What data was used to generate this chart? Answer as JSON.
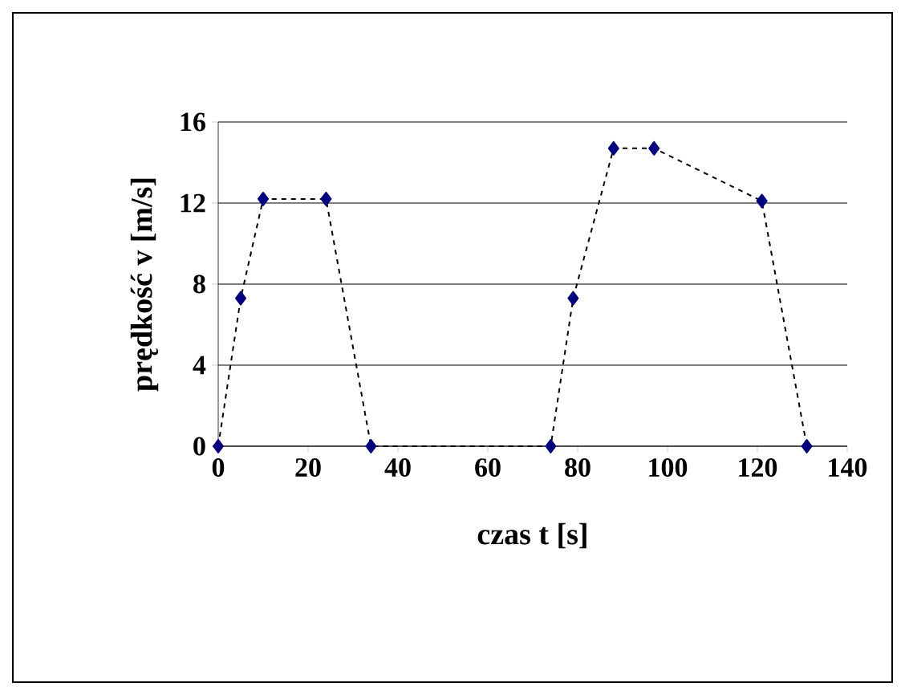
{
  "chart_data": {
    "type": "line",
    "xlabel": "czas t [s]",
    "ylabel": "prędkość v [m/s]",
    "x": [
      0,
      5,
      10,
      24,
      34,
      74,
      79,
      88,
      97,
      121,
      131
    ],
    "series": [
      {
        "color": "#000080",
        "values": [
          0,
          7.3,
          12.2,
          12.2,
          0,
          0,
          7.3,
          14.7,
          14.7,
          12.1,
          0
        ]
      }
    ],
    "xlim": [
      0,
      140
    ],
    "xticks": [
      0,
      20,
      40,
      60,
      80,
      100,
      120,
      140
    ],
    "ylim": [
      0,
      16
    ],
    "yticks": [
      0,
      4,
      8,
      12,
      16
    ],
    "grid": "y",
    "marker": "diamond",
    "line_style": "dashed"
  }
}
